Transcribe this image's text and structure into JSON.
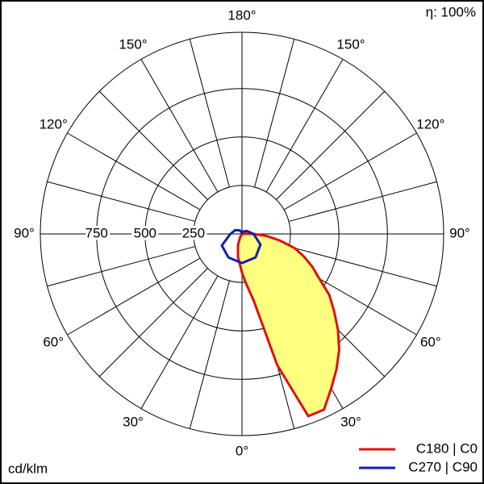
{
  "chart_data": {
    "type": "polar",
    "efficiency_label": "η: 100%",
    "unit_label": "cd/klm",
    "rlim": [
      0,
      1040
    ],
    "rticks": [
      250,
      500,
      750
    ],
    "thetaticks": [
      {
        "value": 0,
        "label": "0°"
      },
      {
        "value": 30,
        "label": "30°"
      },
      {
        "value": -30,
        "label": "30°"
      },
      {
        "value": 60,
        "label": "60°"
      },
      {
        "value": -60,
        "label": "60°"
      },
      {
        "value": 90,
        "label": "90°"
      },
      {
        "value": -90,
        "label": "90°"
      },
      {
        "value": 120,
        "label": "120°"
      },
      {
        "value": -120,
        "label": "120°"
      },
      {
        "value": 150,
        "label": "150°"
      },
      {
        "value": -150,
        "label": "150°"
      },
      {
        "value": 180,
        "label": "180°"
      }
    ],
    "series": [
      {
        "name": "C180 | C0",
        "color": "#e01010",
        "fill": "#ffff80",
        "theta": [
          -180,
          -30,
          -20,
          -10,
          0,
          5,
          10,
          15,
          20,
          25,
          30,
          35,
          40,
          45,
          50,
          55,
          60,
          65,
          70,
          75,
          80,
          85,
          90,
          95,
          100,
          180
        ],
        "values": [
          0,
          20,
          60,
          120,
          200,
          260,
          350,
          700,
          1000,
          1000,
          920,
          850,
          780,
          700,
          620,
          550,
          460,
          400,
          340,
          280,
          200,
          130,
          60,
          20,
          0,
          0
        ]
      },
      {
        "name": "C270 | C90",
        "color": "#1020b0",
        "theta": [
          -180,
          -150,
          -120,
          -90,
          -60,
          -30,
          0,
          30,
          60,
          90,
          120,
          150,
          180
        ],
        "values": [
          5,
          20,
          40,
          60,
          120,
          140,
          150,
          140,
          110,
          60,
          30,
          15,
          5
        ]
      }
    ]
  }
}
